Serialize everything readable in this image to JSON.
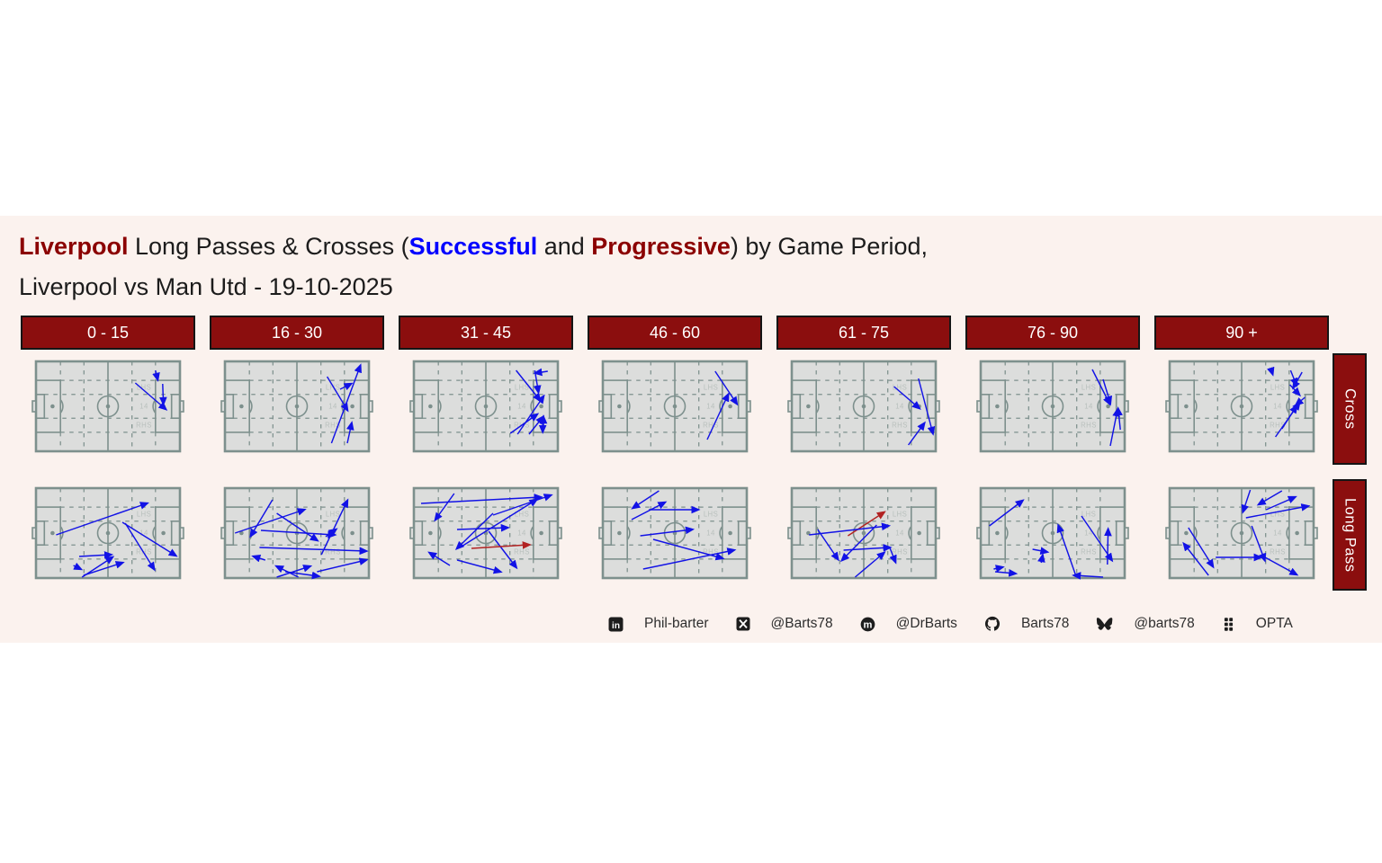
{
  "title": {
    "team": "Liverpool",
    "mid1": " Long Passes & Crosses (",
    "successful": "Successful",
    "and": " and ",
    "progressive": "Progressive",
    "tail": ") by Game Period,",
    "line2": "Liverpool vs Man Utd - 19-10-2025"
  },
  "periods": [
    "0 - 15",
    "16 - 30",
    "31 - 45",
    "46 - 60",
    "61 - 75",
    "76 - 90",
    "90 +"
  ],
  "row_labels": [
    "Cross",
    "Long Pass"
  ],
  "pitch_zone_labels": [
    "LHS",
    "14",
    "RHS"
  ],
  "footer": [
    {
      "icon": "linkedin-icon",
      "label": "Phil-barter"
    },
    {
      "icon": "x-icon",
      "label": "@Barts78"
    },
    {
      "icon": "mastodon-icon",
      "label": "@DrBarts"
    },
    {
      "icon": "github-icon",
      "label": "Barts78"
    },
    {
      "icon": "bluesky-icon",
      "label": "@barts78"
    },
    {
      "icon": "opta-icon",
      "label": "OPTA"
    }
  ],
  "colors": {
    "maroon": "#8b0e0e",
    "box_border": "#151515",
    "title_accent_red": "#8b0000",
    "title_accent_blue": "#0000ff",
    "panel_bg": "#fbf2ee",
    "pitch_bg": "#dcdddc",
    "pitch_line": "#7d908d",
    "zone_label": "#b9c0bd",
    "pass_successful": "#1212e6",
    "pass_progressive": "#b22222",
    "footer_text": "#2d2d2d",
    "icon_color": "#1d1d1d"
  },
  "chart_data": {
    "type": "scatter",
    "subtype": "pass-arrow-small-multiples",
    "title": "Liverpool Long Passes & Crosses (Successful and Progressive) by Game Period, Liverpool vs Man Utd - 19-10-2025",
    "rows": [
      "Cross",
      "Long Pass"
    ],
    "columns": [
      "0 - 15",
      "16 - 30",
      "31 - 45",
      "46 - 60",
      "61 - 75",
      "76 - 90",
      "90 +"
    ],
    "legend": {
      "blue": "Successful",
      "red": "Progressive"
    },
    "coordinates": "relative [x1,y1,x2,y2] in 0-1 pitch units, origin top-left, attack left to right; optional 5th element 'r' marks a progressive (red) pass",
    "panels": {
      "cross": [
        [
          [
            0.83,
            0.1,
            0.845,
            0.2
          ],
          [
            0.69,
            0.24,
            0.9,
            0.53
          ],
          [
            0.88,
            0.25,
            0.885,
            0.47
          ]
        ],
        [
          [
            0.74,
            0.91,
            0.94,
            0.05
          ],
          [
            0.71,
            0.17,
            0.85,
            0.54
          ],
          [
            0.8,
            0.31,
            0.875,
            0.25
          ],
          [
            0.85,
            0.91,
            0.88,
            0.69
          ]
        ],
        [
          [
            0.71,
            0.1,
            0.875,
            0.43
          ],
          [
            0.84,
            0.1,
            0.865,
            0.34
          ],
          [
            0.93,
            0.11,
            0.845,
            0.13
          ],
          [
            0.72,
            0.81,
            0.9,
            0.39
          ],
          [
            0.67,
            0.8,
            0.855,
            0.59
          ],
          [
            0.8,
            0.81,
            0.895,
            0.62
          ],
          [
            0.9,
            0.76,
            0.9,
            0.62
          ],
          [
            0.895,
            0.64,
            0.895,
            0.78
          ]
        ],
        [
          [
            0.78,
            0.11,
            0.93,
            0.47
          ],
          [
            0.725,
            0.87,
            0.87,
            0.37
          ]
        ],
        [
          [
            0.71,
            0.28,
            0.885,
            0.52
          ],
          [
            0.81,
            0.93,
            0.92,
            0.69
          ],
          [
            0.88,
            0.19,
            0.98,
            0.8
          ]
        ],
        [
          [
            0.775,
            0.09,
            0.895,
            0.47
          ],
          [
            0.85,
            0.2,
            0.9,
            0.46
          ],
          [
            0.9,
            0.94,
            0.95,
            0.54
          ],
          [
            0.97,
            0.76,
            0.955,
            0.53
          ]
        ],
        [
          [
            0.705,
            0.09,
            0.715,
            0.14
          ],
          [
            0.84,
            0.1,
            0.88,
            0.26
          ],
          [
            0.92,
            0.12,
            0.86,
            0.29
          ],
          [
            0.835,
            0.26,
            0.9,
            0.37
          ],
          [
            0.94,
            0.4,
            0.88,
            0.48
          ],
          [
            0.735,
            0.84,
            0.9,
            0.465
          ],
          [
            0.78,
            0.75,
            0.88,
            0.5
          ]
        ]
      ],
      "long_pass": [
        [
          [
            0.14,
            0.52,
            0.77,
            0.17
          ],
          [
            0.6,
            0.38,
            0.97,
            0.75
          ],
          [
            0.62,
            0.39,
            0.82,
            0.9
          ],
          [
            0.3,
            0.76,
            0.52,
            0.74
          ],
          [
            0.32,
            0.99,
            0.53,
            0.77
          ],
          [
            0.33,
            0.97,
            0.6,
            0.83
          ],
          [
            0.26,
            0.86,
            0.31,
            0.9
          ]
        ],
        [
          [
            0.33,
            0.13,
            0.18,
            0.53
          ],
          [
            0.07,
            0.5,
            0.55,
            0.24
          ],
          [
            0.36,
            0.28,
            0.64,
            0.58
          ],
          [
            0.25,
            0.47,
            0.76,
            0.52
          ],
          [
            0.67,
            0.74,
            0.85,
            0.14
          ],
          [
            0.7,
            0.54,
            0.77,
            0.46
          ],
          [
            0.24,
            0.66,
            0.98,
            0.7
          ],
          [
            0.28,
            0.8,
            0.2,
            0.76
          ],
          [
            0.51,
            0.99,
            0.36,
            0.87
          ],
          [
            0.36,
            0.99,
            0.59,
            0.87
          ],
          [
            0.42,
            0.93,
            0.65,
            0.98
          ],
          [
            0.64,
            0.93,
            0.98,
            0.8
          ]
        ],
        [
          [
            0.28,
            0.06,
            0.15,
            0.35
          ],
          [
            0.05,
            0.17,
            0.88,
            0.1
          ],
          [
            0.55,
            0.3,
            0.95,
            0.08
          ],
          [
            0.33,
            0.65,
            0.85,
            0.13
          ],
          [
            0.3,
            0.46,
            0.65,
            0.44
          ],
          [
            0.55,
            0.28,
            0.3,
            0.67
          ],
          [
            0.52,
            0.48,
            0.71,
            0.88
          ],
          [
            0.4,
            0.67,
            0.8,
            0.63,
            "r"
          ],
          [
            0.25,
            0.86,
            0.11,
            0.72
          ],
          [
            0.3,
            0.8,
            0.6,
            0.93
          ]
        ],
        [
          [
            0.39,
            0.03,
            0.21,
            0.22
          ],
          [
            0.2,
            0.35,
            0.43,
            0.16
          ],
          [
            0.32,
            0.24,
            0.66,
            0.24
          ],
          [
            0.26,
            0.53,
            0.62,
            0.46
          ],
          [
            0.35,
            0.57,
            0.83,
            0.78
          ],
          [
            0.28,
            0.9,
            0.91,
            0.69
          ]
        ],
        [
          [
            0.39,
            0.53,
            0.64,
            0.27,
            "r"
          ],
          [
            0.12,
            0.52,
            0.67,
            0.42
          ],
          [
            0.18,
            0.46,
            0.32,
            0.79
          ],
          [
            0.59,
            0.41,
            0.35,
            0.8
          ],
          [
            0.36,
            0.69,
            0.68,
            0.66
          ],
          [
            0.44,
            0.99,
            0.64,
            0.72
          ],
          [
            0.68,
            0.66,
            0.72,
            0.82
          ]
        ],
        [
          [
            0.06,
            0.42,
            0.29,
            0.14
          ],
          [
            0.36,
            0.68,
            0.46,
            0.71
          ],
          [
            0.42,
            0.83,
            0.43,
            0.75
          ],
          [
            0.09,
            0.9,
            0.15,
            0.88
          ],
          [
            0.1,
            0.93,
            0.24,
            0.95
          ],
          [
            0.66,
            0.97,
            0.54,
            0.42
          ],
          [
            0.85,
            0.99,
            0.65,
            0.97
          ],
          [
            0.7,
            0.31,
            0.91,
            0.8
          ],
          [
            0.88,
            0.85,
            0.885,
            0.46
          ]
        ],
        [
          [
            0.56,
            0.02,
            0.51,
            0.26
          ],
          [
            0.78,
            0.03,
            0.62,
            0.18
          ],
          [
            0.67,
            0.24,
            0.87,
            0.1
          ],
          [
            0.53,
            0.33,
            0.96,
            0.2
          ],
          [
            0.13,
            0.44,
            0.3,
            0.87
          ],
          [
            0.27,
            0.97,
            0.1,
            0.62
          ],
          [
            0.32,
            0.77,
            0.63,
            0.77
          ],
          [
            0.57,
            0.42,
            0.66,
            0.8
          ],
          [
            0.64,
            0.75,
            0.88,
            0.96
          ]
        ]
      ]
    }
  }
}
